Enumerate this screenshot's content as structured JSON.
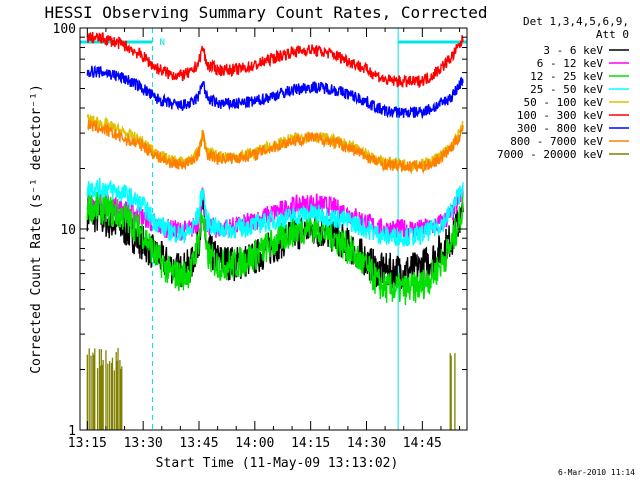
{
  "chart_data": {
    "type": "line",
    "title": "HESSI Observing Summary Count Rates, Corrected",
    "xlabel": "Start Time (11-May-09 13:13:02)",
    "ylabel": "Corrected Count Rate (s⁻¹ detector⁻¹)",
    "y_scale": "log",
    "ylim": [
      1,
      100
    ],
    "y_ticks": [
      "1",
      "10",
      "100"
    ],
    "x_ticks": [
      "13:15",
      "13:30",
      "13:45",
      "14:00",
      "14:15",
      "14:30",
      "14:45"
    ],
    "x_tick_minutes": [
      0,
      15,
      30,
      45,
      60,
      75,
      90
    ],
    "x_range_minutes": [
      -1.97,
      102
    ],
    "grid": false,
    "legend_placement": "outside right",
    "legend_header": [
      "Det 1,3,4,5,6,9,",
      "Att 0"
    ],
    "footer_stamp": "6-Mar-2010 11:14",
    "night_marker": "N",
    "night_indicator_color": "#00e5e5",
    "night_intervals_minutes": [
      [
        -1.97,
        17.5
      ],
      [
        83.5,
        102
      ]
    ],
    "series": [
      {
        "name": "3 - 6 keV",
        "color": "#000000",
        "noise": 0.09,
        "x": [
          0,
          5,
          10,
          15,
          18,
          22,
          25,
          28,
          30,
          31,
          32,
          35,
          40,
          45,
          50,
          55,
          60,
          65,
          70,
          75,
          78,
          80,
          85,
          88,
          90,
          92,
          94,
          96,
          98,
          100,
          101
        ],
        "y": [
          12,
          11,
          10,
          8.5,
          7.5,
          6.6,
          6.2,
          6.6,
          9,
          13,
          8,
          7,
          6.7,
          7.2,
          8.2,
          9.4,
          10,
          9.5,
          8.3,
          7,
          6.2,
          6.2,
          6.2,
          6.3,
          6.5,
          7,
          7.5,
          8.2,
          9,
          11,
          12
        ]
      },
      {
        "name": "6 - 12 keV",
        "color": "#ff00ff",
        "noise": 0.05,
        "x": [
          0,
          5,
          10,
          15,
          18,
          22,
          25,
          28,
          30,
          31,
          32,
          35,
          40,
          45,
          50,
          55,
          60,
          65,
          70,
          75,
          78,
          80,
          85,
          88,
          90,
          92,
          94,
          96,
          98,
          100,
          101
        ],
        "y": [
          14,
          13.5,
          12.5,
          11.5,
          10.5,
          10,
          9.8,
          10,
          11,
          15,
          10.5,
          10,
          10.3,
          11,
          12,
          13,
          13.5,
          13,
          12,
          10.8,
          10.2,
          10,
          10,
          10,
          10,
          10.2,
          10.5,
          11,
          12,
          14,
          15
        ]
      },
      {
        "name": "12 - 25 keV",
        "color": "#00e000",
        "noise": 0.08,
        "x": [
          0,
          5,
          10,
          15,
          18,
          22,
          25,
          28,
          30,
          31,
          32,
          35,
          40,
          45,
          50,
          55,
          60,
          65,
          70,
          75,
          78,
          80,
          85,
          88,
          90,
          92,
          94,
          96,
          98,
          100,
          101
        ],
        "y": [
          13,
          12.5,
          11.5,
          9.5,
          7.5,
          6.1,
          5.8,
          6.2,
          9,
          12,
          7.5,
          6.6,
          6.7,
          7.4,
          8.5,
          9.7,
          10.3,
          9.5,
          8,
          6.4,
          5.4,
          5.1,
          5,
          5.1,
          5.3,
          5.7,
          6.3,
          7.2,
          8.5,
          11,
          13
        ]
      },
      {
        "name": "25 - 50 keV",
        "color": "#00ffff",
        "noise": 0.05,
        "x": [
          0,
          5,
          10,
          15,
          18,
          22,
          25,
          28,
          30,
          31,
          32,
          35,
          40,
          45,
          50,
          55,
          60,
          65,
          70,
          75,
          78,
          80,
          85,
          88,
          90,
          92,
          94,
          96,
          98,
          100,
          101
        ],
        "y": [
          16,
          16,
          15,
          13,
          11,
          9.8,
          9.4,
          9.8,
          12,
          16,
          11,
          10,
          10,
          10.5,
          11,
          11.5,
          12,
          11.5,
          11,
          10,
          9.5,
          9.2,
          9.2,
          9.2,
          9.4,
          9.8,
          10.3,
          11,
          12.5,
          15,
          17
        ]
      },
      {
        "name": "50 - 100 keV",
        "color": "#e0c000",
        "noise": 0.03,
        "x": [
          0,
          5,
          10,
          15,
          18,
          22,
          25,
          28,
          30,
          31,
          32,
          35,
          40,
          45,
          50,
          55,
          60,
          65,
          70,
          75,
          78,
          80,
          85,
          88,
          90,
          92,
          94,
          96,
          98,
          100,
          101
        ],
        "y": [
          35,
          33,
          30,
          27,
          24,
          22,
          21.5,
          22,
          25,
          30,
          24,
          23,
          23,
          24,
          26,
          28,
          29,
          28,
          26,
          23.5,
          22,
          21.5,
          21,
          21,
          21,
          21.5,
          22.5,
          24,
          26,
          30,
          33
        ]
      },
      {
        "name": "100 - 300 keV",
        "color": "#ff0000",
        "noise": 0.03,
        "x": [
          0,
          5,
          10,
          15,
          18,
          22,
          25,
          28,
          30,
          31,
          32,
          35,
          40,
          45,
          50,
          55,
          60,
          65,
          70,
          75,
          78,
          80,
          85,
          88,
          90,
          92,
          94,
          96,
          98,
          100,
          101
        ],
        "y": [
          90,
          88,
          82,
          72,
          64,
          59,
          58,
          60,
          68,
          80,
          66,
          62,
          62,
          65,
          71,
          76,
          78,
          75,
          69,
          62,
          58,
          55,
          54,
          54,
          55,
          57,
          61,
          66,
          72,
          82,
          88
        ]
      },
      {
        "name": "300 - 800 keV",
        "color": "#0000ff",
        "noise": 0.03,
        "x": [
          0,
          5,
          10,
          15,
          18,
          22,
          25,
          28,
          30,
          31,
          32,
          35,
          40,
          45,
          50,
          55,
          60,
          65,
          70,
          75,
          78,
          80,
          85,
          88,
          90,
          92,
          94,
          96,
          98,
          100,
          101
        ],
        "y": [
          61,
          60,
          56,
          50,
          45,
          42,
          41,
          42,
          46,
          55,
          45,
          42,
          42,
          43,
          46,
          49,
          51,
          50,
          47,
          43,
          40,
          38.5,
          38,
          38,
          38.5,
          39.5,
          41,
          43,
          46,
          52,
          56
        ]
      },
      {
        "name": "800 - 7000 keV",
        "color": "#ff8000",
        "noise": 0.03,
        "x": [
          0,
          5,
          10,
          15,
          18,
          22,
          25,
          28,
          30,
          31,
          32,
          35,
          40,
          45,
          50,
          55,
          60,
          65,
          70,
          75,
          78,
          80,
          85,
          88,
          90,
          92,
          94,
          96,
          98,
          100,
          101
        ],
        "y": [
          33,
          31,
          28,
          26,
          23.5,
          21.5,
          21,
          21.5,
          24,
          30,
          23.5,
          22.5,
          22.5,
          23.5,
          25.5,
          27.5,
          28.5,
          27.5,
          25.5,
          23,
          21.5,
          21,
          20.5,
          20.5,
          20.5,
          21,
          22,
          23.5,
          25.5,
          29,
          32
        ]
      },
      {
        "name": "7000 - 20000 keV",
        "color": "#808000",
        "noise": 0,
        "bars_x_minutes": [
          [
            0,
            9.5
          ],
          [
            97.5,
            99.5
          ]
        ],
        "bars_y_top": 2.6,
        "x": [
          0,
          9.5,
          97.5,
          99.5
        ],
        "y": [
          2.6,
          2.6,
          2.6,
          2.6
        ]
      }
    ]
  }
}
